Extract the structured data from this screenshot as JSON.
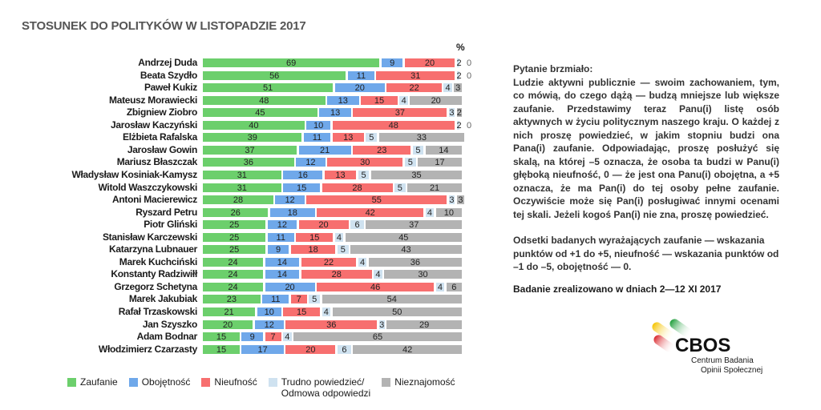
{
  "title": "STOSUNEK DO POLITYKÓW  W LISTOPADZIE 2017",
  "chart_data": {
    "type": "bar",
    "orientation": "horizontal",
    "stacked": true,
    "title": "STOSUNEK DO POLITYKÓW  W LISTOPADZIE 2017",
    "unit": "%",
    "xlim": [
      0,
      100
    ],
    "legend_position": "bottom",
    "categories": [
      "Andrzej Duda",
      "Beata Szydło",
      "Paweł Kukiz",
      "Mateusz Morawiecki",
      "Zbigniew Ziobro",
      "Jarosław Kaczyński",
      "Elżbieta Rafalska",
      "Jarosław Gowin",
      "Mariusz Błaszczak",
      "Władysław Kosiniak-Kamysz",
      "Witold Waszczykowski",
      "Antoni Macierewicz",
      "Ryszard Petru",
      "Piotr Gliński",
      "Stanisław Karczewski",
      "Katarzyna Lubnauer",
      "Marek Kuchciński",
      "Konstanty Radziwiłł",
      "Grzegorz Schetyna",
      "Marek Jakubiak",
      "Rafał Trzaskowski",
      "Jan Szyszko",
      "Adam Bodnar",
      "Włodzimierz Czarzasty"
    ],
    "series": [
      {
        "name": "Zaufanie",
        "color": "#6ccf6c",
        "values": [
          69,
          56,
          51,
          48,
          45,
          40,
          39,
          37,
          36,
          31,
          31,
          28,
          26,
          25,
          25,
          25,
          24,
          24,
          24,
          23,
          21,
          20,
          15,
          15
        ]
      },
      {
        "name": "Obojętność",
        "color": "#6fa8ea",
        "values": [
          9,
          11,
          20,
          13,
          13,
          10,
          11,
          21,
          12,
          16,
          15,
          12,
          18,
          12,
          11,
          9,
          14,
          14,
          20,
          11,
          10,
          12,
          9,
          17
        ]
      },
      {
        "name": "Nieufność",
        "color": "#f76f6f",
        "values": [
          20,
          31,
          22,
          15,
          37,
          48,
          13,
          23,
          30,
          13,
          28,
          55,
          42,
          20,
          15,
          18,
          22,
          28,
          46,
          7,
          15,
          36,
          7,
          20
        ]
      },
      {
        "name": "Trudno powiedzieć/ Odmowa odpowiedzi",
        "color": "#cfe2f0",
        "values": [
          2,
          2,
          4,
          4,
          3,
          2,
          5,
          5,
          5,
          5,
          5,
          3,
          4,
          6,
          4,
          5,
          4,
          4,
          4,
          5,
          4,
          3,
          4,
          6
        ]
      },
      {
        "name": "Nieznajomość",
        "color": "#b3b3b3",
        "values": [
          0,
          0,
          3,
          20,
          2,
          0,
          33,
          14,
          17,
          35,
          21,
          3,
          10,
          37,
          45,
          43,
          36,
          30,
          6,
          54,
          50,
          29,
          65,
          42
        ]
      }
    ]
  },
  "legend": [
    "Zaufanie",
    "Obojętność",
    "Nieufność",
    "Trudno powiedzieć/\nOdmowa odpowiedzi",
    "Nieznajomość"
  ],
  "notes": {
    "heading": "Pytanie brzmiało:",
    "question": "Ludzie aktywni publicznie — swoim zachowaniem, tym, co mówią, do czego dążą — budzą mniejsze lub większe zaufanie. Przedstawimy teraz Panu(i) listę osób aktywnych w życiu politycznym naszego kraju. O każdej z nich proszę powiedzieć, w jakim stopniu budzi ona Pana(i) zaufanie. Odpowiadając, proszę posłużyć się skalą, na której –5 oznacza, że osoba ta budzi w Panu(i) głęboką nieufność, 0 — że jest ona Panu(i) obojętna, a +5 oznacza, że ma Pan(i) do tej osoby pełne zaufanie. Oczywiście może się Pan(i) posługiwać innymi ocenami tej skali. Jeżeli kogoś Pan(i) nie zna, proszę powiedzieć.",
    "definition": "Odsetki badanych wyrażających zaufanie — wskazania punktów od +1 do +5, nieufność — wskazania punktów od –1 do –5, obojętność — 0.",
    "date": "Badanie zrealizowano w dniach 2—12 XI 2017"
  },
  "logo": {
    "name": "CBOS",
    "subtitle1": "Centrum Badania",
    "subtitle2": "Opinii Społecznej"
  }
}
